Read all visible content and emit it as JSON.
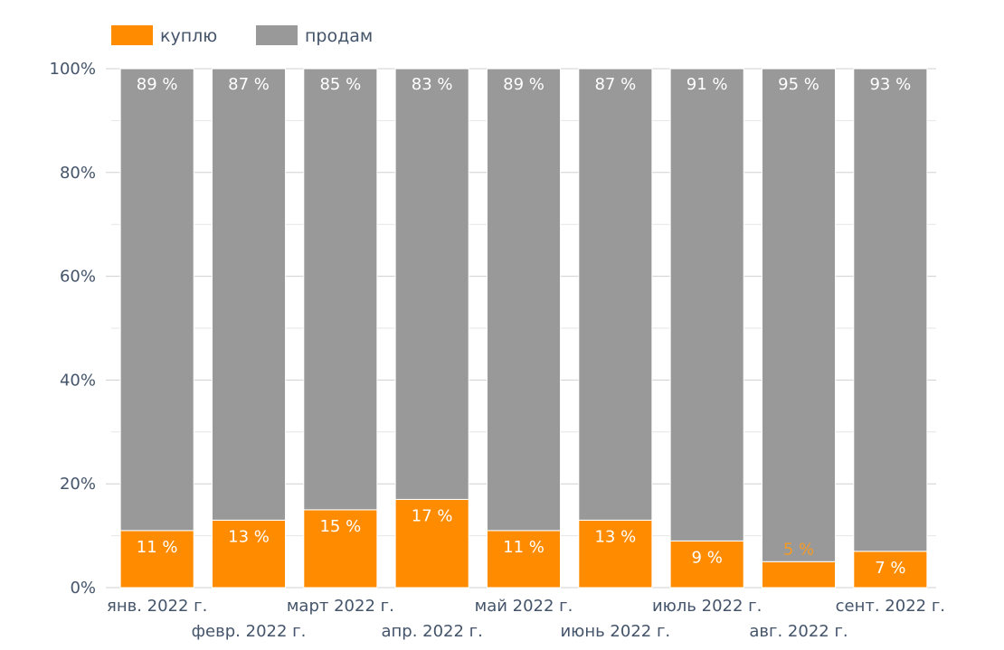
{
  "chart_data": {
    "type": "bar",
    "stacked": true,
    "percent_stacked": true,
    "categories": [
      "янв. 2022 г.",
      "февр. 2022 г.",
      "март 2022 г.",
      "апр. 2022 г.",
      "май 2022 г.",
      "июнь 2022 г.",
      "июль 2022 г.",
      "авг. 2022 г.",
      "сент. 2022 г."
    ],
    "series": [
      {
        "name": "куплю",
        "color": "#ff8c00",
        "values": [
          11,
          13,
          15,
          17,
          11,
          13,
          9,
          5,
          7
        ],
        "data_labels": [
          "11 %",
          "13 %",
          "15 %",
          "17 %",
          "11 %",
          "13 %",
          "9 %",
          "5 %",
          "7 %"
        ]
      },
      {
        "name": "продам",
        "color": "#999999",
        "values": [
          89,
          87,
          85,
          83,
          89,
          87,
          91,
          95,
          93
        ],
        "data_labels": [
          "89 %",
          "87 %",
          "85 %",
          "83 %",
          "89 %",
          "87 %",
          "91 %",
          "95 %",
          "93 %"
        ]
      }
    ],
    "y_ticks": [
      "0%",
      "20%",
      "40%",
      "60%",
      "80%",
      "100%"
    ],
    "ylim": [
      0,
      100
    ],
    "grid": true,
    "legend_position": "top-left",
    "title": "",
    "xlabel": "",
    "ylabel": ""
  }
}
